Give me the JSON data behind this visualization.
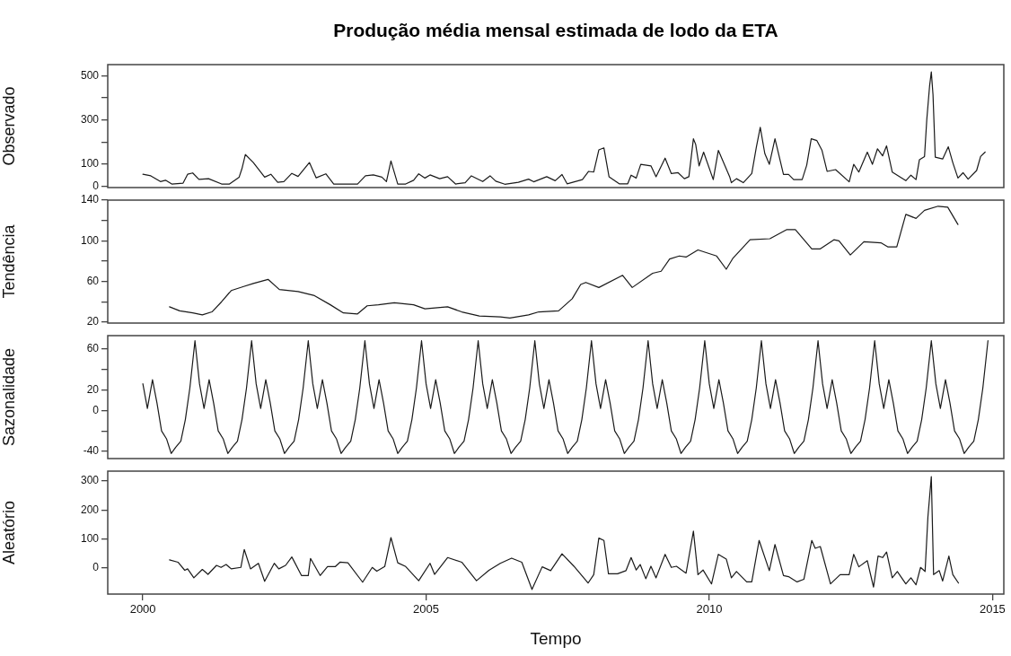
{
  "chart_data": [
    {
      "type": "line",
      "title": "Produção média mensal estimada de lodo da ETA",
      "ylabel": "Observado",
      "color": "#1a1a1a",
      "xlim": [
        1999.38,
        2015.2
      ],
      "ylim": [
        -5,
        550
      ],
      "yticks": [
        0,
        100,
        {
          "value": 200,
          "label": null
        },
        300,
        {
          "value": 400,
          "label": null
        },
        500
      ],
      "tick_labels": "y",
      "x": [
        2000.0,
        2000.14,
        2000.31,
        2000.4,
        2000.51,
        2000.71,
        2000.79,
        2000.88,
        2000.99,
        2001.16,
        2001.39,
        2001.53,
        2001.7,
        2001.75,
        2001.81,
        2001.95,
        2002.15,
        2002.26,
        2002.38,
        2002.49,
        2002.63,
        2002.74,
        2002.94,
        2003.06,
        2003.23,
        2003.37,
        2003.79,
        2003.93,
        2004.07,
        2004.22,
        2004.3,
        2004.38,
        2004.5,
        2004.64,
        2004.78,
        2004.87,
        2004.98,
        2005.07,
        2005.24,
        2005.38,
        2005.52,
        2005.69,
        2005.8,
        2006.0,
        2006.13,
        2006.23,
        2006.39,
        2006.63,
        2006.81,
        2006.9,
        2007.13,
        2007.28,
        2007.4,
        2007.49,
        2007.76,
        2007.87,
        2007.96,
        2008.05,
        2008.14,
        2008.23,
        2008.41,
        2008.56,
        2008.62,
        2008.71,
        2008.79,
        2008.97,
        2009.06,
        2009.22,
        2009.33,
        2009.45,
        2009.56,
        2009.64,
        2009.72,
        2009.76,
        2009.82,
        2009.9,
        2010.07,
        2010.16,
        2010.36,
        2010.39,
        2010.48,
        2010.6,
        2010.75,
        2010.83,
        2010.9,
        2010.98,
        2011.06,
        2011.16,
        2011.31,
        2011.4,
        2011.49,
        2011.64,
        2011.72,
        2011.8,
        2011.9,
        2011.99,
        2012.08,
        2012.23,
        2012.47,
        2012.55,
        2012.64,
        2012.79,
        2012.88,
        2012.97,
        2013.06,
        2013.13,
        2013.23,
        2013.47,
        2013.56,
        2013.65,
        2013.71,
        2013.8,
        2013.84,
        2013.89,
        2013.92,
        2013.95,
        2013.99,
        2014.12,
        2014.22,
        2014.3,
        2014.39,
        2014.48,
        2014.57,
        2014.72,
        2014.79,
        2014.87
      ],
      "values": [
        55,
        48,
        22,
        28,
        11,
        15,
        55,
        61,
        32,
        35,
        11,
        11,
        42,
        81,
        144,
        108,
        42,
        55,
        19,
        22,
        59,
        45,
        108,
        39,
        57,
        11,
        11,
        48,
        52,
        42,
        22,
        115,
        11,
        11,
        28,
        57,
        38,
        52,
        35,
        44,
        11,
        17,
        48,
        22,
        48,
        24,
        10,
        19,
        33,
        21,
        44,
        26,
        54,
        12,
        31,
        68,
        65,
        165,
        174,
        44,
        12,
        12,
        51,
        38,
        100,
        93,
        44,
        128,
        58,
        62,
        35,
        44,
        215,
        190,
        93,
        155,
        31,
        163,
        44,
        17,
        35,
        17,
        58,
        176,
        267,
        149,
        100,
        215,
        54,
        54,
        31,
        31,
        96,
        215,
        207,
        163,
        68,
        76,
        21,
        100,
        65,
        155,
        100,
        170,
        138,
        183,
        65,
        26,
        51,
        31,
        121,
        135,
        302,
        455,
        517,
        413,
        132,
        124,
        179,
        107,
        38,
        62,
        33,
        72,
        135,
        155
      ]
    },
    {
      "type": "line",
      "ylabel": "Tendência",
      "color": "#1a1a1a",
      "xlim": [
        1999.38,
        2015.2
      ],
      "ylim": [
        19,
        140
      ],
      "yticks": [
        20,
        {
          "value": 40,
          "label": null
        },
        60,
        {
          "value": 80,
          "label": null
        },
        100,
        {
          "value": 120,
          "label": null
        },
        140
      ],
      "tick_labels": "y",
      "x": [
        2000.47,
        2000.65,
        2000.88,
        2001.05,
        2001.22,
        2001.39,
        2001.56,
        2001.78,
        2001.95,
        2002.21,
        2002.41,
        2002.74,
        2003.03,
        2003.31,
        2003.54,
        2003.79,
        2003.96,
        2004.16,
        2004.44,
        2004.78,
        2004.98,
        2005.38,
        2005.63,
        2005.94,
        2006.31,
        2006.48,
        2006.81,
        2006.99,
        2007.34,
        2007.58,
        2007.73,
        2007.82,
        2008.05,
        2008.47,
        2008.64,
        2009.0,
        2009.15,
        2009.3,
        2009.47,
        2009.59,
        2009.8,
        2010.13,
        2010.3,
        2010.42,
        2010.72,
        2011.07,
        2011.37,
        2011.52,
        2011.81,
        2011.96,
        2012.2,
        2012.29,
        2012.49,
        2012.73,
        2013.03,
        2013.15,
        2013.31,
        2013.47,
        2013.65,
        2013.8,
        2014.04,
        2014.21,
        2014.39
      ],
      "values": [
        35,
        31,
        29,
        27,
        30,
        40,
        51,
        55,
        58,
        62,
        52,
        50,
        46,
        37,
        29,
        28,
        36,
        37,
        39,
        37,
        33,
        35,
        30,
        26,
        25,
        24,
        27,
        30,
        31,
        43,
        57,
        59,
        54,
        66,
        54,
        68,
        70,
        82,
        85,
        84,
        91,
        85,
        72,
        83,
        101,
        102,
        111,
        111,
        92,
        92,
        101,
        100,
        86,
        99,
        98,
        94,
        94,
        126,
        122,
        130,
        134,
        133,
        116
      ]
    },
    {
      "type": "line",
      "ylabel": "Sazonalidade",
      "color": "#1a1a1a",
      "xlim": [
        1999.38,
        2015.2
      ],
      "ylim": [
        -47,
        73
      ],
      "yticks": [
        -40,
        {
          "value": -20,
          "label": null
        },
        0,
        20,
        {
          "value": 40,
          "label": null
        },
        60
      ],
      "tick_labels": "y",
      "x": [
        2000.0,
        2000.08,
        2000.17,
        2000.25,
        2000.33,
        2000.42,
        2000.5,
        2000.58,
        2000.67,
        2000.75,
        2000.83,
        2000.92,
        2001.0,
        2001.08,
        2001.17,
        2001.25,
        2001.33,
        2001.42,
        2001.5,
        2001.58,
        2001.67,
        2001.75,
        2001.83,
        2001.92,
        2002.0,
        2002.08,
        2002.17,
        2002.25,
        2002.33,
        2002.42,
        2002.5,
        2002.58,
        2002.67,
        2002.75,
        2002.83,
        2002.92,
        2003.0,
        2003.08,
        2003.17,
        2003.25,
        2003.33,
        2003.42,
        2003.5,
        2003.58,
        2003.67,
        2003.75,
        2003.83,
        2003.92,
        2004.0,
        2004.08,
        2004.17,
        2004.25,
        2004.33,
        2004.42,
        2004.5,
        2004.58,
        2004.67,
        2004.75,
        2004.83,
        2004.92,
        2005.0,
        2005.08,
        2005.17,
        2005.25,
        2005.33,
        2005.42,
        2005.5,
        2005.58,
        2005.67,
        2005.75,
        2005.83,
        2005.92,
        2006.0,
        2006.08,
        2006.17,
        2006.25,
        2006.33,
        2006.42,
        2006.5,
        2006.58,
        2006.67,
        2006.75,
        2006.83,
        2006.92,
        2007.0,
        2007.08,
        2007.17,
        2007.25,
        2007.33,
        2007.42,
        2007.5,
        2007.58,
        2007.67,
        2007.75,
        2007.83,
        2007.92,
        2008.0,
        2008.08,
        2008.17,
        2008.25,
        2008.33,
        2008.42,
        2008.5,
        2008.58,
        2008.67,
        2008.75,
        2008.83,
        2008.92,
        2009.0,
        2009.08,
        2009.17,
        2009.25,
        2009.33,
        2009.42,
        2009.5,
        2009.58,
        2009.67,
        2009.75,
        2009.83,
        2009.92,
        2010.0,
        2010.08,
        2010.17,
        2010.25,
        2010.33,
        2010.42,
        2010.5,
        2010.58,
        2010.67,
        2010.75,
        2010.83,
        2010.92,
        2011.0,
        2011.08,
        2011.17,
        2011.25,
        2011.33,
        2011.42,
        2011.5,
        2011.58,
        2011.67,
        2011.75,
        2011.83,
        2011.92,
        2012.0,
        2012.08,
        2012.17,
        2012.25,
        2012.33,
        2012.42,
        2012.5,
        2012.58,
        2012.67,
        2012.75,
        2012.83,
        2012.92,
        2013.0,
        2013.08,
        2013.17,
        2013.25,
        2013.33,
        2013.42,
        2013.5,
        2013.58,
        2013.67,
        2013.75,
        2013.83,
        2013.92,
        2014.0,
        2014.08,
        2014.17,
        2014.25,
        2014.33,
        2014.42,
        2014.5,
        2014.58,
        2014.67,
        2014.75,
        2014.83,
        2014.92
      ],
      "values": [
        26,
        2,
        30,
        7,
        -20,
        -28,
        -42,
        -36,
        -30,
        -9,
        22,
        68,
        26,
        2,
        30,
        7,
        -20,
        -28,
        -42,
        -36,
        -30,
        -9,
        22,
        68,
        26,
        2,
        30,
        7,
        -20,
        -28,
        -42,
        -36,
        -30,
        -9,
        22,
        68,
        26,
        2,
        30,
        7,
        -20,
        -28,
        -42,
        -36,
        -30,
        -9,
        22,
        68,
        26,
        2,
        30,
        7,
        -20,
        -28,
        -42,
        -36,
        -30,
        -9,
        22,
        68,
        26,
        2,
        30,
        7,
        -20,
        -28,
        -42,
        -36,
        -30,
        -9,
        22,
        68,
        26,
        2,
        30,
        7,
        -20,
        -28,
        -42,
        -36,
        -30,
        -9,
        22,
        68,
        26,
        2,
        30,
        7,
        -20,
        -28,
        -42,
        -36,
        -30,
        -9,
        22,
        68,
        26,
        2,
        30,
        7,
        -20,
        -28,
        -42,
        -36,
        -30,
        -9,
        22,
        68,
        26,
        2,
        30,
        7,
        -20,
        -28,
        -42,
        -36,
        -30,
        -9,
        22,
        68,
        26,
        2,
        30,
        7,
        -20,
        -28,
        -42,
        -36,
        -30,
        -9,
        22,
        68,
        26,
        2,
        30,
        7,
        -20,
        -28,
        -42,
        -36,
        -30,
        -9,
        22,
        68,
        26,
        2,
        30,
        7,
        -20,
        -28,
        -42,
        -36,
        -30,
        -9,
        22,
        68,
        26,
        2,
        30,
        7,
        -20,
        -28,
        -42,
        -36,
        -30,
        -9,
        22,
        68,
        26,
        2,
        30,
        7,
        -20,
        -28,
        -42,
        -36,
        -30,
        -9,
        22,
        68
      ]
    },
    {
      "type": "line",
      "ylabel": "Aleatório",
      "xlabel": "Tempo",
      "color": "#1a1a1a",
      "xlim": [
        1999.38,
        2015.2
      ],
      "xticks": [
        2000,
        2005,
        2010,
        2015
      ],
      "ylim": [
        -90,
        334
      ],
      "yticks": [
        0,
        100,
        200,
        300
      ],
      "x": [
        2000.47,
        2000.62,
        2000.74,
        2000.79,
        2000.9,
        2001.05,
        2001.15,
        2001.3,
        2001.38,
        2001.47,
        2001.56,
        2001.73,
        2001.79,
        2001.9,
        2002.04,
        2002.15,
        2002.32,
        2002.4,
        2002.52,
        2002.63,
        2002.8,
        2002.92,
        2002.96,
        2003.13,
        2003.26,
        2003.4,
        2003.48,
        2003.62,
        2003.88,
        2004.05,
        2004.13,
        2004.27,
        2004.38,
        2004.5,
        2004.64,
        2004.87,
        2005.07,
        2005.15,
        2005.38,
        2005.63,
        2005.89,
        2006.11,
        2006.31,
        2006.51,
        2006.69,
        2006.87,
        2007.05,
        2007.2,
        2007.4,
        2007.61,
        2007.86,
        2007.96,
        2008.05,
        2008.14,
        2008.22,
        2008.38,
        2008.53,
        2008.62,
        2008.71,
        2008.78,
        2008.88,
        2008.97,
        2009.06,
        2009.22,
        2009.33,
        2009.42,
        2009.59,
        2009.72,
        2009.8,
        2009.89,
        2010.04,
        2010.16,
        2010.3,
        2010.39,
        2010.48,
        2010.66,
        2010.75,
        2010.88,
        2011.06,
        2011.16,
        2011.31,
        2011.4,
        2011.55,
        2011.67,
        2011.81,
        2011.87,
        2011.96,
        2012.14,
        2012.31,
        2012.47,
        2012.55,
        2012.64,
        2012.79,
        2012.9,
        2012.98,
        2013.06,
        2013.13,
        2013.23,
        2013.32,
        2013.47,
        2013.56,
        2013.65,
        2013.73,
        2013.81,
        2013.86,
        2013.92,
        2013.96,
        2014.06,
        2014.12,
        2014.23,
        2014.3,
        2014.4
      ],
      "values": [
        28,
        20,
        -8,
        -3,
        -34,
        -5,
        -22,
        9,
        2,
        12,
        -3,
        2,
        64,
        -3,
        16,
        -46,
        16,
        -3,
        9,
        38,
        -26,
        -26,
        33,
        -26,
        5,
        5,
        20,
        18,
        -49,
        2,
        -11,
        5,
        105,
        18,
        5,
        -44,
        16,
        -22,
        36,
        20,
        -44,
        -8,
        16,
        34,
        20,
        -74,
        4,
        -9,
        49,
        6,
        -52,
        -23,
        103,
        95,
        -20,
        -20,
        -9,
        36,
        -7,
        12,
        -37,
        6,
        -34,
        47,
        2,
        6,
        -18,
        127,
        -23,
        -7,
        -55,
        47,
        31,
        -34,
        -12,
        -48,
        -48,
        95,
        -9,
        81,
        -26,
        -30,
        -48,
        -39,
        95,
        68,
        74,
        -55,
        -23,
        -23,
        47,
        4,
        25,
        -66,
        41,
        36,
        55,
        -34,
        -12,
        -55,
        -34,
        -58,
        2,
        -12,
        176,
        315,
        -23,
        -9,
        -45,
        41,
        -23,
        -52
      ]
    }
  ]
}
